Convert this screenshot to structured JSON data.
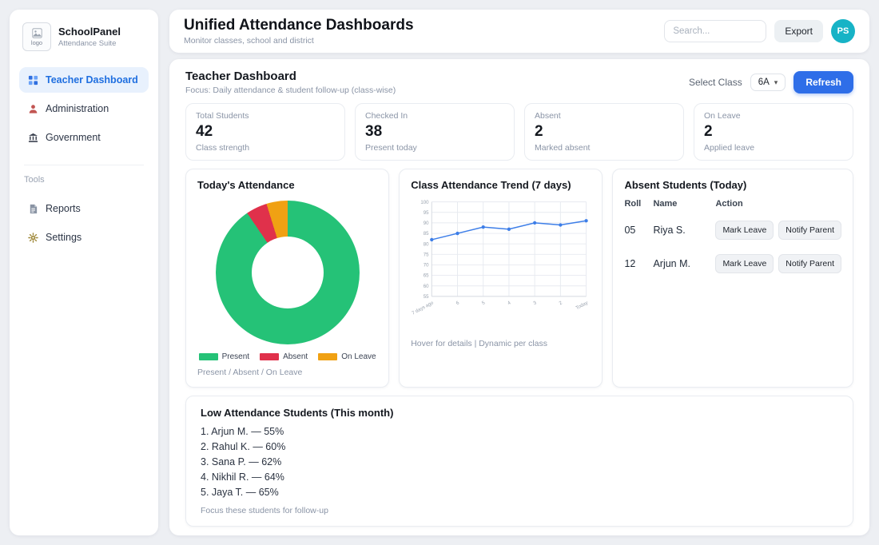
{
  "sidebar": {
    "brand": {
      "logo_alt": "logo",
      "name": "SchoolPanel",
      "subtitle": "Attendance Suite"
    },
    "items": [
      {
        "label": "Teacher Dashboard",
        "active": true
      },
      {
        "label": "Administration",
        "active": false
      },
      {
        "label": "Government",
        "active": false
      }
    ],
    "tools_label": "Tools",
    "tools": [
      {
        "label": "Reports"
      },
      {
        "label": "Settings"
      }
    ]
  },
  "header": {
    "title": "Unified Attendance Dashboards",
    "subtitle": "Monitor classes, school and district",
    "search_placeholder": "Search...",
    "export_label": "Export",
    "avatar_initials": "PS"
  },
  "section": {
    "title": "Teacher Dashboard",
    "subtitle": "Focus: Daily attendance & student follow-up (class-wise)",
    "select_class_label": "Select Class",
    "selected_class": "6A",
    "refresh_label": "Refresh"
  },
  "icons": {
    "chevron_down": "▾"
  },
  "stats": [
    {
      "label": "Total Students",
      "value": "42",
      "sub": "Class strength"
    },
    {
      "label": "Checked In",
      "value": "38",
      "sub": "Present today"
    },
    {
      "label": "Absent",
      "value": "2",
      "sub": "Marked absent"
    },
    {
      "label": "On Leave",
      "value": "2",
      "sub": "Applied leave"
    }
  ],
  "chart_data": [
    {
      "type": "pie",
      "donut": true,
      "title": "Today's Attendance",
      "labels": [
        "Present",
        "Absent",
        "On Leave"
      ],
      "values": [
        38,
        2,
        2
      ],
      "colors": [
        "#25c277",
        "#e0314b",
        "#f0a113"
      ],
      "legend_position": "bottom",
      "caption": "Present / Absent / On Leave"
    },
    {
      "type": "line",
      "title": "Class Attendance Trend (7 days)",
      "categories": [
        "7 days ago",
        "6",
        "5",
        "4",
        "3",
        "2",
        "Today"
      ],
      "values": [
        82,
        85,
        88,
        87,
        90,
        89,
        91
      ],
      "ylim": [
        55,
        100
      ],
      "ytick_step": 5,
      "line_color": "#3d7ee8",
      "grid": true,
      "caption": "Hover for details | Dynamic per class"
    }
  ],
  "absent_table": {
    "title": "Absent Students (Today)",
    "columns": [
      "Roll",
      "Name",
      "Action"
    ],
    "rows": [
      {
        "roll": "05",
        "name": "Riya S.",
        "actions": [
          "Mark Leave",
          "Notify Parent"
        ]
      },
      {
        "roll": "12",
        "name": "Arjun M.",
        "actions": [
          "Mark Leave",
          "Notify Parent"
        ]
      }
    ]
  },
  "low_attendance": {
    "title": "Low Attendance Students (This month)",
    "items": [
      "1. Arjun M. — 55%",
      "2. Rahul K. — 60%",
      "3. Sana P. — 62%",
      "4. Nikhil R. — 64%",
      "5. Jaya T. — 65%"
    ],
    "note": "Focus these students for follow-up"
  },
  "colors": {
    "accent_blue": "#2e6ee8",
    "active_nav_bg": "#e8f1fd",
    "avatar_teal": "#17b3c6",
    "present_green": "#25c277",
    "absent_red": "#e0314b",
    "leave_orange": "#f0a113",
    "trend_line": "#3d7ee8",
    "page_bg": "#edeff3"
  }
}
